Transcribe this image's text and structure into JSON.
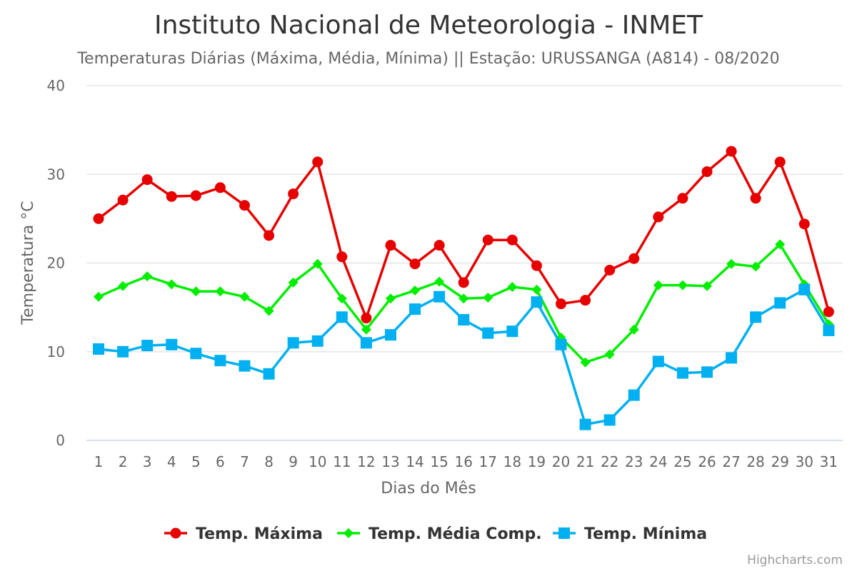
{
  "chart_data": {
    "type": "line",
    "title": "Instituto Nacional de Meteorologia - INMET",
    "subtitle": "Temperaturas Diárias (Máxima, Média, Mínima) || Estação: URUSSANGA (A814) - 08/2020",
    "xlabel": "Dias do Mês",
    "ylabel": "Temperatura °C",
    "ylim": [
      0,
      40
    ],
    "yticks": [
      0,
      10,
      20,
      30,
      40
    ],
    "grid": true,
    "legend_position": "bottom-center",
    "categories": [
      "1",
      "2",
      "3",
      "4",
      "5",
      "6",
      "7",
      "8",
      "9",
      "10",
      "11",
      "12",
      "13",
      "14",
      "15",
      "16",
      "17",
      "18",
      "19",
      "20",
      "21",
      "22",
      "23",
      "24",
      "25",
      "26",
      "27",
      "28",
      "29",
      "30",
      "31"
    ],
    "series": [
      {
        "name": "Temp. Máxima",
        "color": "#e60000",
        "marker": "circle",
        "values": [
          25.0,
          27.1,
          29.4,
          27.5,
          27.6,
          28.5,
          26.5,
          23.1,
          27.8,
          31.4,
          20.7,
          13.8,
          22.0,
          19.9,
          22.0,
          17.8,
          22.6,
          22.6,
          19.7,
          15.4,
          15.8,
          19.2,
          20.5,
          25.2,
          27.3,
          30.3,
          32.6,
          27.3,
          31.4,
          24.4,
          14.5
        ]
      },
      {
        "name": "Temp. Média Comp.",
        "color": "#00ee00",
        "marker": "diamond",
        "values": [
          16.2,
          17.4,
          18.5,
          17.6,
          16.8,
          16.8,
          16.2,
          14.6,
          17.8,
          19.9,
          16.0,
          12.5,
          16.0,
          16.9,
          17.9,
          16.0,
          16.1,
          17.3,
          17.0,
          11.6,
          8.8,
          9.7,
          12.5,
          17.5,
          17.5,
          17.4,
          19.9,
          19.6,
          22.1,
          17.6,
          13.1
        ]
      },
      {
        "name": "Temp. Mínima",
        "color": "#00b0f0",
        "marker": "square",
        "values": [
          10.3,
          10.0,
          10.7,
          10.8,
          9.8,
          9.0,
          8.4,
          7.5,
          11.0,
          11.2,
          13.9,
          11.0,
          11.9,
          14.8,
          16.2,
          13.6,
          12.1,
          12.3,
          15.6,
          10.8,
          1.8,
          2.3,
          5.1,
          8.9,
          7.6,
          7.7,
          9.3,
          13.9,
          15.5,
          17.0,
          12.4
        ]
      }
    ],
    "credits": "Highcharts.com"
  }
}
